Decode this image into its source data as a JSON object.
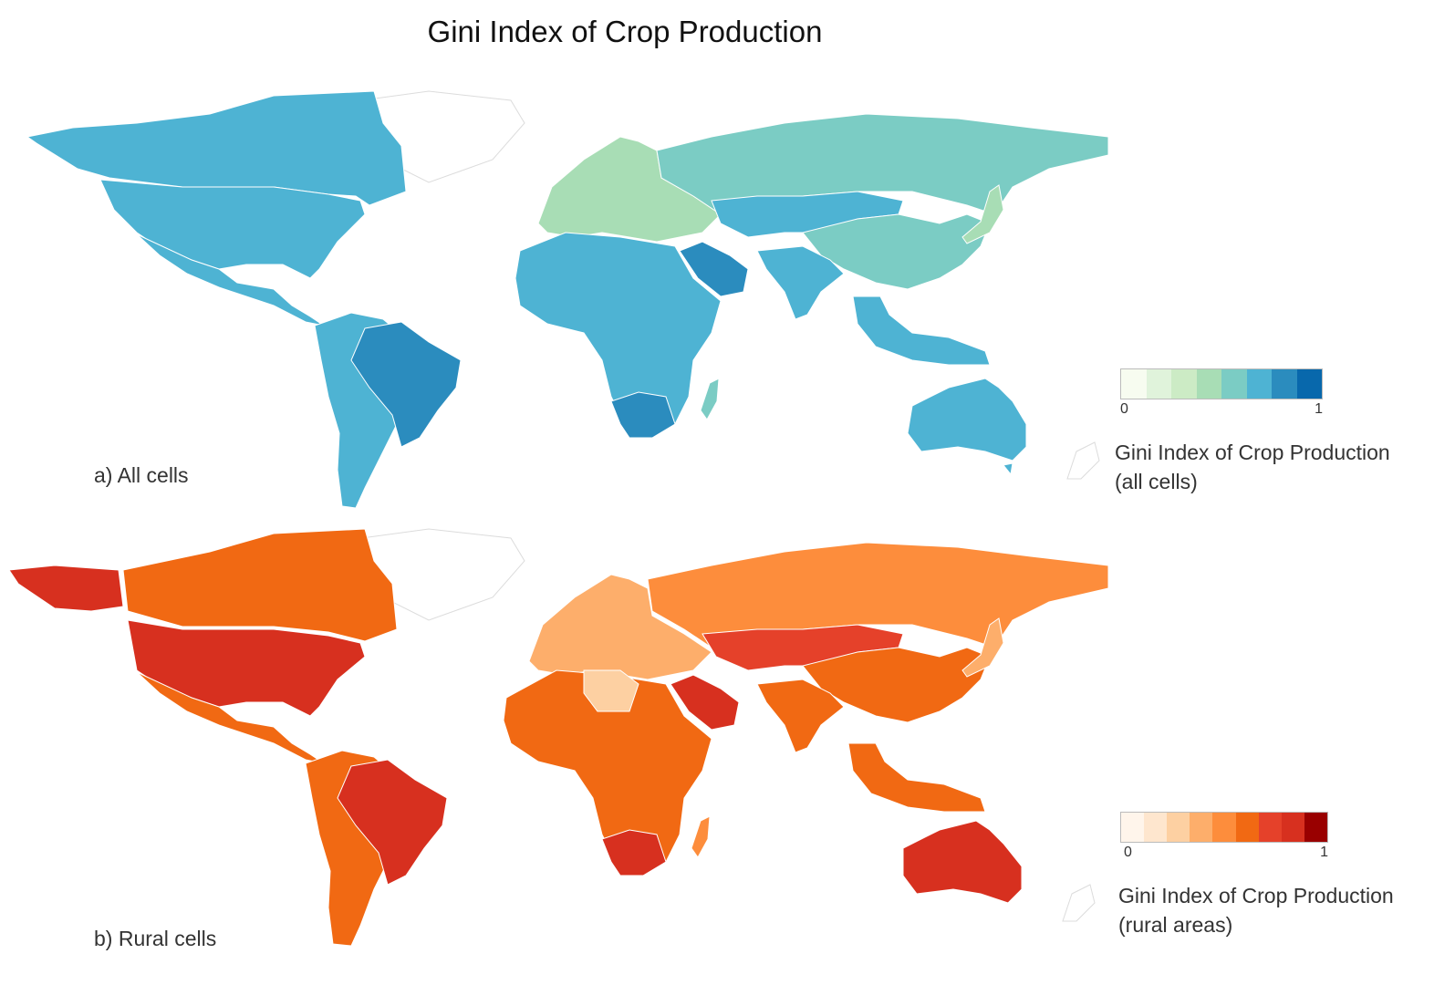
{
  "title": "Gini Index of Crop Production",
  "panels": [
    {
      "label": "a) All cells",
      "legend": {
        "min": "0",
        "max": "1",
        "title_line1": "Gini Index of Crop Production",
        "title_line2": "(all cells)",
        "colors": [
          "#f7fcf0",
          "#e0f3db",
          "#ccebc5",
          "#a8ddb5",
          "#7bccc4",
          "#4eb3d3",
          "#2b8cbe",
          "#0868ac"
        ]
      },
      "regions": [
        {
          "name": "Canada",
          "color": "#4eb3d3"
        },
        {
          "name": "United States",
          "color": "#4eb3d3"
        },
        {
          "name": "Mexico",
          "color": "#4eb3d3"
        },
        {
          "name": "Brazil",
          "color": "#2b8cbe"
        },
        {
          "name": "South America",
          "color": "#4eb3d3"
        },
        {
          "name": "Russia",
          "color": "#7bccc4"
        },
        {
          "name": "Europe",
          "color": "#a8ddb5"
        },
        {
          "name": "China",
          "color": "#7bccc4"
        },
        {
          "name": "Central Asia",
          "color": "#4eb3d3"
        },
        {
          "name": "India",
          "color": "#4eb3d3"
        },
        {
          "name": "Saudi Arabia",
          "color": "#2b8cbe"
        },
        {
          "name": "Africa",
          "color": "#4eb3d3"
        },
        {
          "name": "South Africa",
          "color": "#2b8cbe"
        },
        {
          "name": "Madagascar",
          "color": "#7bccc4"
        },
        {
          "name": "Southeast Asia",
          "color": "#4eb3d3"
        },
        {
          "name": "Australia",
          "color": "#4eb3d3"
        },
        {
          "name": "Japan",
          "color": "#a8ddb5"
        }
      ]
    },
    {
      "label": "b) Rural cells",
      "legend": {
        "min": "0",
        "max": "1",
        "title_line1": "Gini Index of Crop Production",
        "title_line2": "(rural areas)",
        "colors": [
          "#fff5eb",
          "#fee6ce",
          "#fdd0a2",
          "#fdae6b",
          "#fd8d3c",
          "#f16913",
          "#e5412a",
          "#d7301f",
          "#990000"
        ]
      },
      "regions": [
        {
          "name": "Alaska",
          "color": "#d7301f"
        },
        {
          "name": "Canada",
          "color": "#f16913"
        },
        {
          "name": "United States",
          "color": "#d7301f"
        },
        {
          "name": "Mexico",
          "color": "#f16913"
        },
        {
          "name": "Brazil",
          "color": "#d7301f"
        },
        {
          "name": "South America",
          "color": "#f16913"
        },
        {
          "name": "Russia",
          "color": "#fd8d3c"
        },
        {
          "name": "Europe",
          "color": "#fdae6b"
        },
        {
          "name": "China",
          "color": "#f16913"
        },
        {
          "name": "Central Asia",
          "color": "#e5412a"
        },
        {
          "name": "India",
          "color": "#f16913"
        },
        {
          "name": "Saudi Arabia",
          "color": "#d7301f"
        },
        {
          "name": "North Africa",
          "color": "#fdd0a2"
        },
        {
          "name": "Africa",
          "color": "#f16913"
        },
        {
          "name": "South Africa",
          "color": "#d7301f"
        },
        {
          "name": "Madagascar",
          "color": "#fd8d3c"
        },
        {
          "name": "Southeast Asia",
          "color": "#f16913"
        },
        {
          "name": "Australia",
          "color": "#d7301f"
        },
        {
          "name": "Japan",
          "color": "#fdae6b"
        }
      ]
    }
  ]
}
